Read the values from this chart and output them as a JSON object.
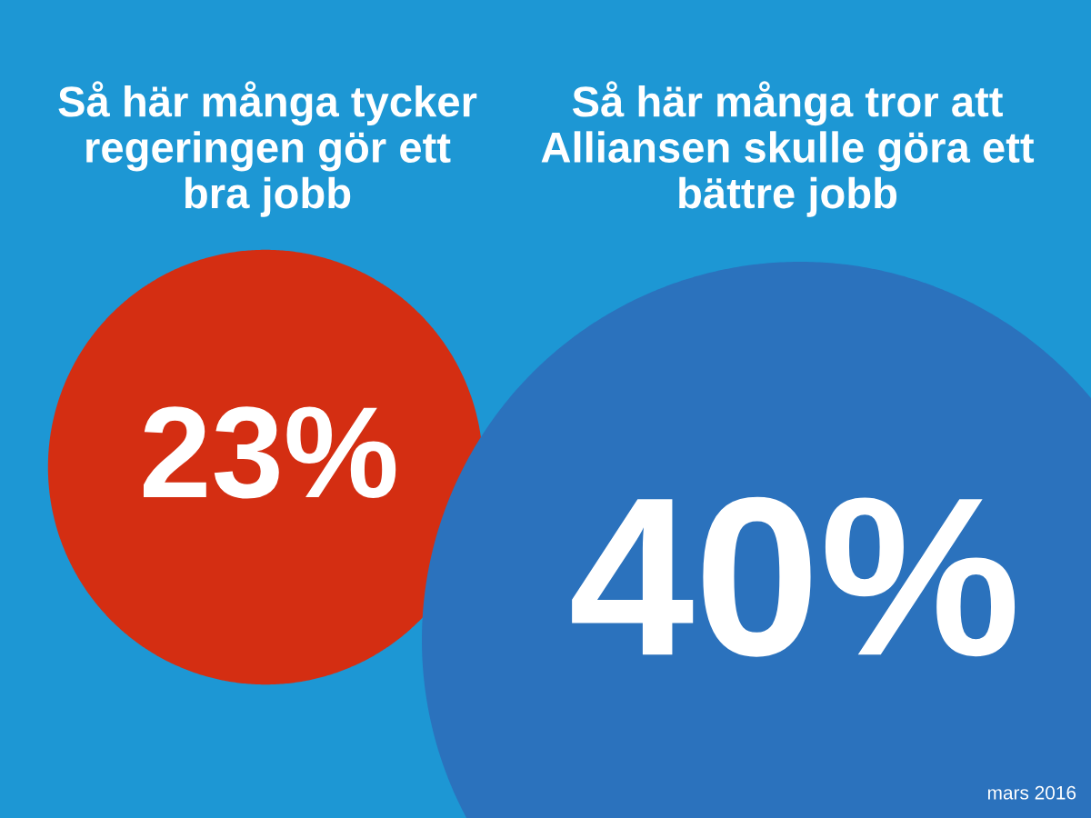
{
  "chart_data": {
    "type": "other",
    "categories": [
      "Så här många tycker\nregeringen gör ett\nbra jobb",
      "Så här många tror att\nAlliansen skulle göra ett\nbättre jobb"
    ],
    "values": [
      23,
      40
    ],
    "value_labels": [
      "23%",
      "40%"
    ],
    "colors": [
      "#d42e12",
      "#2b72bd"
    ],
    "annotations": [
      "mars 2016"
    ]
  }
}
